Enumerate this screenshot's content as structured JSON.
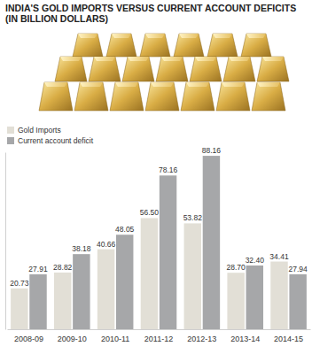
{
  "chart_data": {
    "type": "bar",
    "title": "INDIA'S GOLD IMPORTS VERSUS CURRENT ACCOUNT DEFICITS",
    "subtitle": "(IN BILLION DOLLARS)",
    "categories": [
      "2008-09",
      "2009-10",
      "2010-11",
      "2011-12",
      "2012-13",
      "2013-14",
      "2014-15"
    ],
    "series": [
      {
        "name": "Gold Imports",
        "color": "#e2dfd6",
        "values": [
          20.73,
          28.82,
          40.66,
          56.5,
          53.82,
          28.7,
          34.41
        ],
        "value_labels": [
          "20.73",
          "28.82",
          "40.66",
          "56.50",
          "53.82",
          "28.70",
          "34.41"
        ]
      },
      {
        "name": "Current account deficit",
        "color": "#a6a7a9",
        "values": [
          27.91,
          38.18,
          48.05,
          78.16,
          88.16,
          32.4,
          27.94
        ],
        "value_labels": [
          "27.91",
          "38.18",
          "48.05",
          "78.16",
          "88.16",
          "32.40",
          "27.94"
        ]
      }
    ],
    "ylim": [
      0,
      90
    ],
    "data_labels": true,
    "legend": "top-left",
    "grid": false,
    "tick_labels": "x"
  }
}
